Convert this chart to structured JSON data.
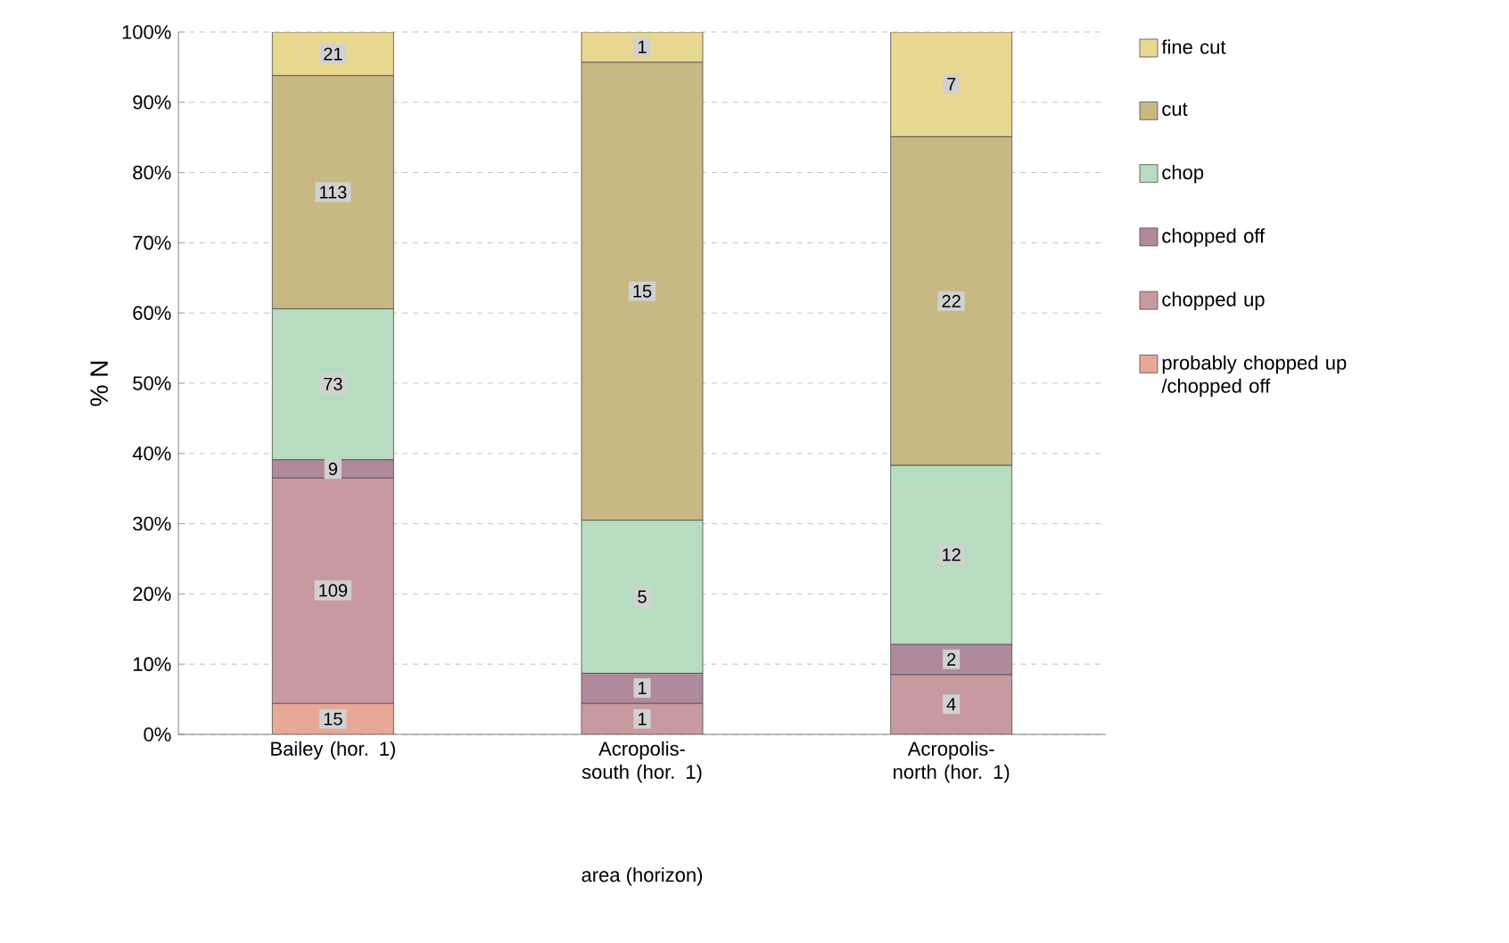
{
  "chart_data": {
    "type": "bar",
    "stacked": true,
    "xlabel": "area (horizon)",
    "ylabel": "% N",
    "categories": [
      "Bailey (hor. 1)",
      "Acropolis-south (hor. 1)",
      "Acropolis-north (hor. 1)"
    ],
    "ylim": [
      0,
      100
    ],
    "yticks": [
      {
        "value": 0,
        "label": "0%"
      },
      {
        "value": 10,
        "label": "10%"
      },
      {
        "value": 20,
        "label": "20%"
      },
      {
        "value": 30,
        "label": "30%"
      },
      {
        "value": 40,
        "label": "40%"
      },
      {
        "value": 50,
        "label": "50%"
      },
      {
        "value": 60,
        "label": "60%"
      },
      {
        "value": 70,
        "label": "70%"
      },
      {
        "value": 80,
        "label": "80%"
      },
      {
        "value": 90,
        "label": "90%"
      },
      {
        "value": 100,
        "label": "100%"
      }
    ],
    "grid": "y",
    "legend": "right",
    "series": [
      {
        "name": "probably chopped up /chopped off",
        "color": "#e8a898",
        "values": [
          4.4,
          0,
          0
        ]
      },
      {
        "name": "chopped up",
        "color": "#c89aa0",
        "values": [
          32.1,
          4.4,
          8.5
        ]
      },
      {
        "name": "chopped off",
        "color": "#b08a9c",
        "values": [
          2.6,
          4.3,
          4.3
        ]
      },
      {
        "name": "chop",
        "color": "#b8dcc0",
        "values": [
          21.5,
          21.8,
          25.5
        ]
      },
      {
        "name": "cut",
        "color": "#c8b884",
        "values": [
          33.2,
          65.2,
          46.8
        ]
      },
      {
        "name": "fine cut",
        "color": "#e8d890",
        "values": [
          6.2,
          4.3,
          14.9
        ]
      }
    ],
    "annotations": [
      {
        "text": "15",
        "x": "Bailey (hor. 1)",
        "y": 2.2
      },
      {
        "text": "109",
        "x": "Bailey (hor. 1)",
        "y": 20.5
      },
      {
        "text": "9",
        "x": "Bailey (hor. 1)",
        "y": 37.8
      },
      {
        "text": "73",
        "x": "Bailey (hor. 1)",
        "y": 49.9
      },
      {
        "text": "113",
        "x": "Bailey (hor. 1)",
        "y": 77.2
      },
      {
        "text": "21",
        "x": "Bailey (hor. 1)",
        "y": 96.9
      },
      {
        "text": "1",
        "x": "Acropolis-south (hor. 1)",
        "y": 2.2
      },
      {
        "text": "1",
        "x": "Acropolis-south (hor. 1)",
        "y": 6.6
      },
      {
        "text": "5",
        "x": "Acropolis-south (hor. 1)",
        "y": 19.6
      },
      {
        "text": "15",
        "x": "Acropolis-south (hor. 1)",
        "y": 63.1
      },
      {
        "text": "1",
        "x": "Acropolis-south (hor. 1)",
        "y": 97.9
      },
      {
        "text": "4",
        "x": "Acropolis-north (hor. 1)",
        "y": 4.3
      },
      {
        "text": "2",
        "x": "Acropolis-north (hor. 1)",
        "y": 10.7
      },
      {
        "text": "12",
        "x": "Acropolis-north (hor. 1)",
        "y": 25.6
      },
      {
        "text": "22",
        "x": "Acropolis-north (hor. 1)",
        "y": 61.7
      },
      {
        "text": "7",
        "x": "Acropolis-north (hor. 1)",
        "y": 92.6
      }
    ]
  }
}
